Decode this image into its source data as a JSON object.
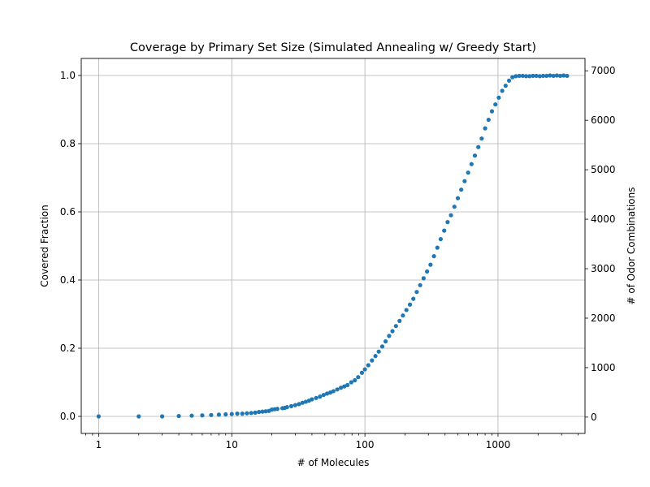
{
  "chart_data": {
    "type": "scatter",
    "title": "Coverage by Primary Set Size (Simulated Annealing w/ Greedy Start)",
    "xlabel": "# of Molecules",
    "ylabel": "Covered Fraction",
    "y2label": "# of Odor Combinations",
    "xscale": "log",
    "xlim": [
      0.74,
      4500
    ],
    "ylim": [
      -0.05,
      1.05
    ],
    "y2lim": [
      -330,
      7250
    ],
    "grid": true,
    "marker_color": "#1f77b4",
    "x_ticks": [
      {
        "value": 1,
        "label": "1"
      },
      {
        "value": 10,
        "label": "10"
      },
      {
        "value": 100,
        "label": "100"
      },
      {
        "value": 1000,
        "label": "1000"
      }
    ],
    "y_ticks": [
      {
        "value": 0.0,
        "label": "0.0"
      },
      {
        "value": 0.2,
        "label": "0.2"
      },
      {
        "value": 0.4,
        "label": "0.4"
      },
      {
        "value": 0.6,
        "label": "0.6"
      },
      {
        "value": 0.8,
        "label": "0.8"
      },
      {
        "value": 1.0,
        "label": "1.0"
      }
    ],
    "y2_ticks": [
      {
        "value": 0,
        "label": "0"
      },
      {
        "value": 1000,
        "label": "1000"
      },
      {
        "value": 2000,
        "label": "2000"
      },
      {
        "value": 3000,
        "label": "3000"
      },
      {
        "value": 4000,
        "label": "4000"
      },
      {
        "value": 5000,
        "label": "5000"
      },
      {
        "value": 6000,
        "label": "6000"
      },
      {
        "value": 7000,
        "label": "7000"
      }
    ],
    "series": [
      {
        "x": [
          1,
          2,
          3,
          4,
          5,
          6,
          7,
          8,
          9,
          10,
          11,
          12,
          13,
          14,
          15,
          16,
          17,
          18,
          19,
          20,
          21,
          22,
          24,
          25,
          26,
          28,
          30,
          32,
          34,
          36,
          38,
          40,
          43,
          46,
          49,
          52,
          55,
          58,
          62,
          66,
          70,
          74,
          79,
          84,
          89,
          95,
          100,
          106,
          113,
          120,
          127,
          135,
          143,
          152,
          161,
          171,
          182,
          193,
          205,
          218,
          231,
          245,
          260,
          276,
          293,
          311,
          330,
          350,
          371,
          394,
          418,
          443,
          470,
          499,
          529,
          561,
          596,
          632,
          670,
          711,
          754,
          800,
          849,
          900,
          955,
          1013,
          1075,
          1140,
          1210,
          1283,
          1361,
          1444,
          1532,
          1625,
          1724,
          1829,
          1940,
          2058,
          2183,
          2316,
          2457,
          2606,
          2765,
          2933,
          3111,
          3300
        ],
        "y": [
          0.0,
          0.0,
          0.0,
          0.001,
          0.002,
          0.003,
          0.004,
          0.005,
          0.006,
          0.007,
          0.008,
          0.008,
          0.009,
          0.01,
          0.011,
          0.013,
          0.014,
          0.015,
          0.016,
          0.02,
          0.021,
          0.022,
          0.024,
          0.025,
          0.027,
          0.03,
          0.033,
          0.036,
          0.04,
          0.043,
          0.046,
          0.05,
          0.054,
          0.058,
          0.063,
          0.067,
          0.07,
          0.074,
          0.079,
          0.084,
          0.088,
          0.092,
          0.1,
          0.106,
          0.115,
          0.128,
          0.138,
          0.15,
          0.164,
          0.177,
          0.19,
          0.205,
          0.22,
          0.236,
          0.25,
          0.265,
          0.28,
          0.296,
          0.312,
          0.328,
          0.345,
          0.365,
          0.385,
          0.405,
          0.425,
          0.445,
          0.47,
          0.495,
          0.52,
          0.545,
          0.57,
          0.59,
          0.615,
          0.64,
          0.665,
          0.69,
          0.715,
          0.74,
          0.765,
          0.79,
          0.815,
          0.845,
          0.87,
          0.895,
          0.915,
          0.935,
          0.955,
          0.97,
          0.985,
          0.995,
          0.998,
          0.999,
          0.999,
          0.998,
          0.998,
          0.999,
          0.999,
          0.998,
          0.999,
          0.999,
          1.0,
          0.999,
          1.0,
          0.999,
          1.0,
          0.999
        ]
      }
    ]
  }
}
